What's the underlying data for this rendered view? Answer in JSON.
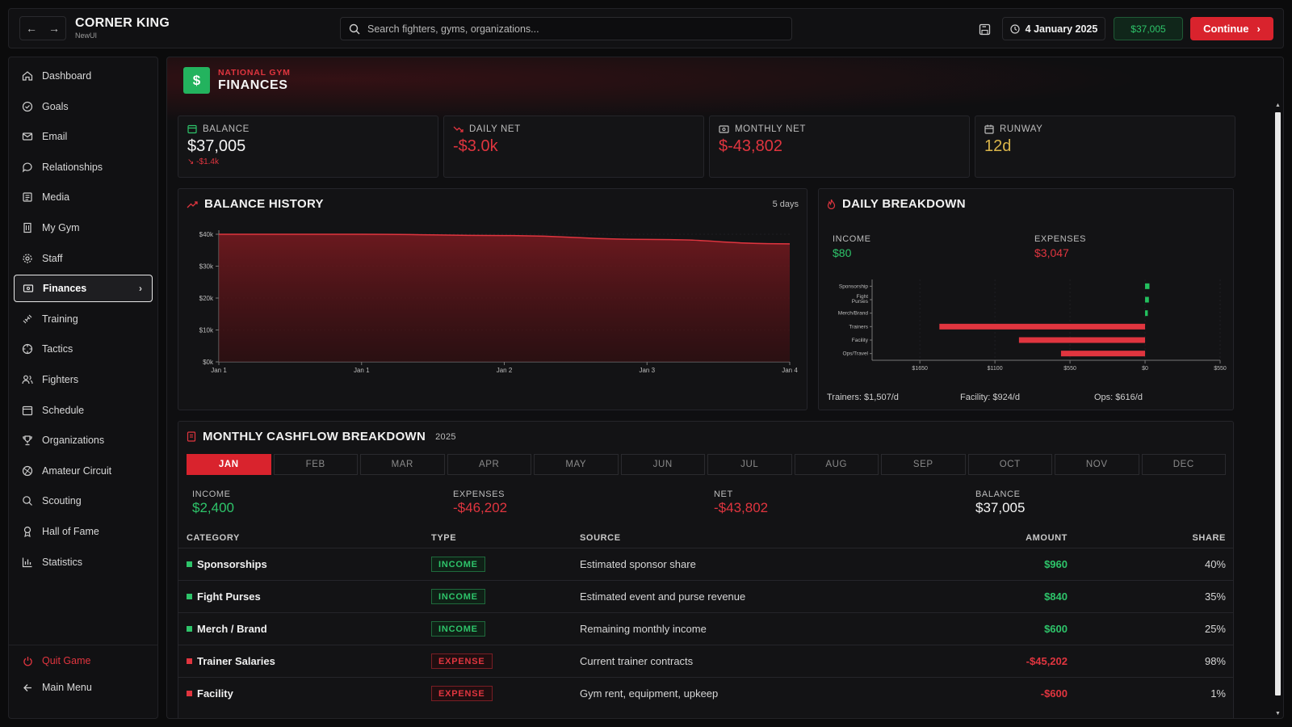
{
  "app": {
    "title": "CORNER KING",
    "subtitle": "NewUI"
  },
  "topbar": {
    "back_label": "←",
    "forward_label": "→",
    "search_placeholder": "Search fighters, gyms, organizations...",
    "date": "4 January 2025",
    "money": "$37,005",
    "continue_label": "Continue"
  },
  "sidebar": {
    "items": [
      {
        "label": "Dashboard",
        "icon": "home-icon"
      },
      {
        "label": "Goals",
        "icon": "check-circle-icon"
      },
      {
        "label": "Email",
        "icon": "mail-icon"
      },
      {
        "label": "Relationships",
        "icon": "chat-icon"
      },
      {
        "label": "Media",
        "icon": "newspaper-icon"
      },
      {
        "label": "My Gym",
        "icon": "building-icon"
      },
      {
        "label": "Staff",
        "icon": "gear-icon"
      },
      {
        "label": "Finances",
        "icon": "wallet-icon"
      },
      {
        "label": "Training",
        "icon": "dumbbell-icon"
      },
      {
        "label": "Tactics",
        "icon": "target-icon"
      },
      {
        "label": "Fighters",
        "icon": "users-icon"
      },
      {
        "label": "Schedule",
        "icon": "calendar-icon"
      },
      {
        "label": "Organizations",
        "icon": "trophy-icon"
      },
      {
        "label": "Amateur Circuit",
        "icon": "medal-icon"
      },
      {
        "label": "Scouting",
        "icon": "search-icon"
      },
      {
        "label": "Hall of Fame",
        "icon": "award-icon"
      },
      {
        "label": "Statistics",
        "icon": "bar-chart-icon"
      }
    ],
    "active_index": 7,
    "quit_label": "Quit Game",
    "main_menu_label": "Main Menu"
  },
  "header": {
    "subtitle": "NATIONAL GYM",
    "title": "FINANCES",
    "badge": "$"
  },
  "stats": {
    "balance": {
      "label": "BALANCE",
      "value": "$37,005",
      "delta": "-$1.4k"
    },
    "daily_net": {
      "label": "DAILY NET",
      "value": "-$3.0k"
    },
    "monthly_net": {
      "label": "MONTHLY NET",
      "value": "$-43,802"
    },
    "runway": {
      "label": "RUNWAY",
      "value": "12d"
    }
  },
  "balance_history": {
    "title": "BALANCE HISTORY",
    "range_label": "5 days"
  },
  "daily_breakdown": {
    "title": "DAILY BREAKDOWN",
    "income_label": "INCOME",
    "income_value": "$80",
    "expenses_label": "EXPENSES",
    "expenses_value": "$3,047",
    "footer": [
      "Trainers: $1,507/d",
      "Facility: $924/d",
      "Ops: $616/d"
    ]
  },
  "chart_data": [
    {
      "type": "area",
      "title": "BALANCE HISTORY",
      "x": [
        "Jan 1",
        "Jan 1",
        "Jan 2",
        "Jan 3",
        "Jan 4"
      ],
      "y": [
        40000,
        40000,
        39600,
        38400,
        37005
      ],
      "yticks": [
        "$0k",
        "$10k",
        "$20k",
        "$30k",
        "$40k"
      ],
      "ylim": [
        0,
        40000
      ],
      "color": "#e0353f"
    },
    {
      "type": "bar",
      "orientation": "horizontal",
      "categories": [
        "Sponsorship",
        "Fight Purses",
        "Merch/Brand",
        "Trainers",
        "Facility",
        "Ops/Travel"
      ],
      "values": [
        32,
        28,
        20,
        -1507,
        -924,
        -616
      ],
      "xticks": [
        "$1650",
        "$1100",
        "$550",
        "$0",
        "$550"
      ],
      "xlim": [
        -2000,
        550
      ],
      "income_color": "#23c05e",
      "expense_color": "#e0353f"
    }
  ],
  "monthly": {
    "title": "MONTHLY CASHFLOW BREAKDOWN",
    "year": "2025",
    "months": [
      "JAN",
      "FEB",
      "MAR",
      "APR",
      "MAY",
      "JUN",
      "JUL",
      "AUG",
      "SEP",
      "OCT",
      "NOV",
      "DEC"
    ],
    "active_month": 0,
    "summary": {
      "income_label": "INCOME",
      "income_value": "$2,400",
      "expenses_label": "EXPENSES",
      "expenses_value": "-$46,202",
      "net_label": "NET",
      "net_value": "-$43,802",
      "balance_label": "BALANCE",
      "balance_value": "$37,005"
    },
    "columns": [
      "CATEGORY",
      "TYPE",
      "SOURCE",
      "AMOUNT",
      "SHARE"
    ],
    "rows": [
      {
        "category": "Sponsorships",
        "type": "INCOME",
        "source": "Estimated sponsor share",
        "amount": "$960",
        "share": "40%"
      },
      {
        "category": "Fight Purses",
        "type": "INCOME",
        "source": "Estimated event and purse revenue",
        "amount": "$840",
        "share": "35%"
      },
      {
        "category": "Merch / Brand",
        "type": "INCOME",
        "source": "Remaining monthly income",
        "amount": "$600",
        "share": "25%"
      },
      {
        "category": "Trainer Salaries",
        "type": "EXPENSE",
        "source": "Current trainer contracts",
        "amount": "-$45,202",
        "share": "98%"
      },
      {
        "category": "Facility",
        "type": "EXPENSE",
        "source": "Gym rent, equipment, upkeep",
        "amount": "-$600",
        "share": "1%"
      }
    ]
  },
  "colors": {
    "accent": "#d9232d",
    "positive": "#2ec46a",
    "negative": "#e0353f",
    "warning": "#d9b44a"
  }
}
